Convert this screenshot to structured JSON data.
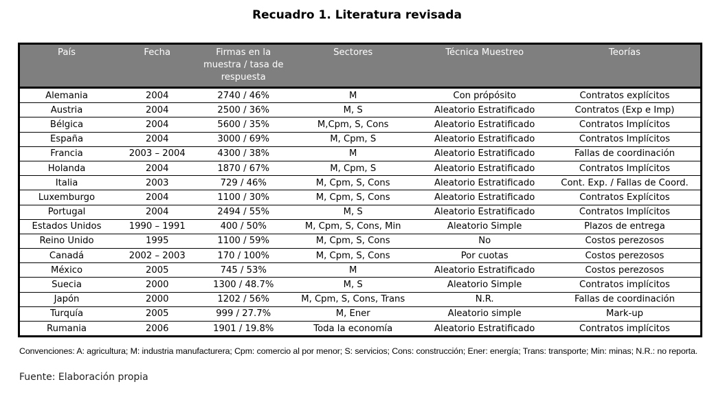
{
  "title": "Recuadro 1. Literatura revisada",
  "headers": [
    "País",
    "Fecha",
    "Firmas en la muestra / tasa de respuesta",
    "Sectores",
    "Técnica Muestreo",
    "Teorías"
  ],
  "rows": [
    [
      "Alemania",
      "2004",
      "2740 / 46%",
      "M",
      "Con própósito",
      "Contratos explícitos"
    ],
    [
      "Austria",
      "2004",
      "2500 / 36%",
      "M, S",
      "Aleatorio Estratificado",
      "Contratos (Exp e Imp)"
    ],
    [
      "Bélgica",
      "2004",
      "5600 / 35%",
      "M,Cpm, S, Cons",
      "Aleatorio Estratificado",
      "Contratos Implícitos"
    ],
    [
      "España",
      "2004",
      "3000 / 69%",
      "M, Cpm, S",
      "Aleatorio Estratificado",
      "Contratos Implícitos"
    ],
    [
      "Francia",
      "2003 – 2004",
      "4300 / 38%",
      "M",
      "Aleatorio Estratificado",
      "Fallas de coordinación"
    ],
    [
      "Holanda",
      "2004",
      "1870 / 67%",
      "M, Cpm, S",
      "Aleatorio Estratificado",
      "Contratos Implícitos"
    ],
    [
      "Italia",
      "2003",
      "729 / 46%",
      "M, Cpm, S, Cons",
      "Aleatorio Estratificado",
      "Cont. Exp. / Fallas de Coord."
    ],
    [
      "Luxemburgo",
      "2004",
      "1100 / 30%",
      "M, Cpm, S, Cons",
      "Aleatorio Estratificado",
      "Contratos Explícitos"
    ],
    [
      "Portugal",
      "2004",
      "2494 / 55%",
      "M, S",
      "Aleatorio Estratificado",
      "Contratos Implícitos"
    ],
    [
      "Estados Unidos",
      "1990 – 1991",
      "400 / 50%",
      "M, Cpm, S, Cons, Min",
      "Aleatorio Simple",
      "Plazos de entrega"
    ],
    [
      "Reino Unido",
      "1995",
      "1100 / 59%",
      "M, Cpm, S, Cons",
      "No",
      "Costos perezosos"
    ],
    [
      "Canadá",
      "2002 – 2003",
      "170 / 100%",
      "M, Cpm, S, Cons",
      "Por cuotas",
      "Costos perezosos"
    ],
    [
      "México",
      "2005",
      "745 / 53%",
      "M",
      "Aleatorio Estratificado",
      "Costos perezosos"
    ],
    [
      "Suecia",
      "2000",
      "1300 / 48.7%",
      "M, S",
      "Aleatorio Simple",
      "Contratos implícitos"
    ],
    [
      "Japón",
      "2000",
      "1202 / 56%",
      "M, Cpm, S, Cons, Trans",
      "N.R.",
      "Fallas de coordinación"
    ],
    [
      "Turquía",
      "2005",
      "999 / 27.7%",
      "M, Ener",
      "Aleatorio simple",
      "Mark-up"
    ],
    [
      "Rumania",
      "2006",
      "1901 / 19.8%",
      "Toda la economía",
      "Aleatorio Estratificado",
      "Contratos implícitos"
    ]
  ],
  "conventions": "Convenciones: A: agricultura; M: industria manufacturera; Cpm: comercio al por menor; S: servicios; Cons: construcción; Ener: energía; Trans: transporte; Min: minas; N.R.: no reporta.",
  "source": "Fuente: Elaboración propia"
}
